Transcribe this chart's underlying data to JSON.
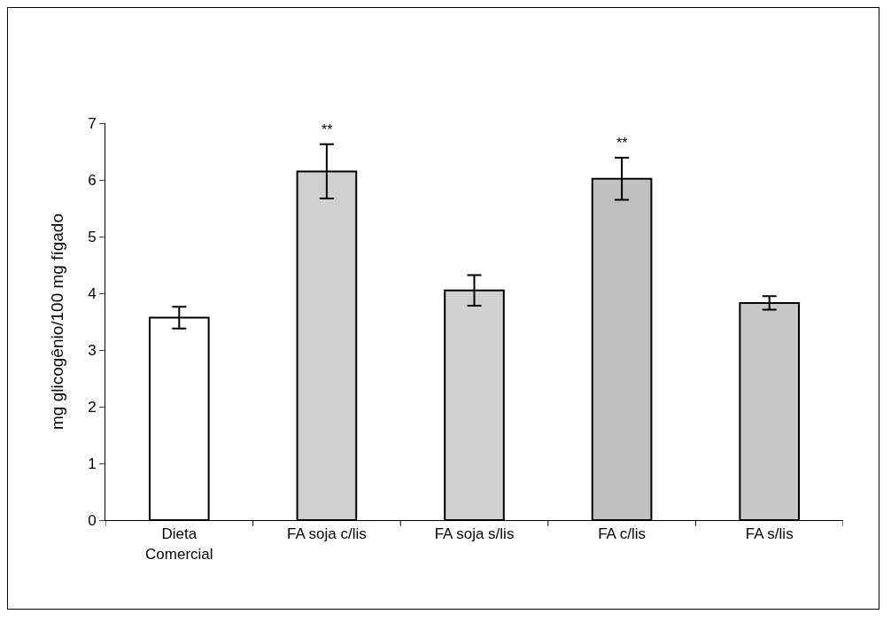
{
  "chart_data": {
    "type": "bar",
    "ylabel": "mg glicogênio/100 mg fígado",
    "categories": [
      "Dieta Comercial",
      "FA soja c/lis",
      "FA soja s/lis",
      "FA c/lis",
      "FA s/lis"
    ],
    "values": [
      3.57,
      6.15,
      4.05,
      6.02,
      3.83
    ],
    "errors": [
      0.19,
      0.48,
      0.27,
      0.37,
      0.12
    ],
    "colors": [
      "#ffffff",
      "#d0d0d0",
      "#d0d0d0",
      "#c0c0c0",
      "#c8c8c8"
    ],
    "value_labels": [
      null,
      "**",
      null,
      "**",
      null
    ],
    "ylim": [
      0,
      7
    ],
    "yticks": [
      0,
      1,
      2,
      3,
      4,
      5,
      6,
      7
    ],
    "grid": false
  }
}
